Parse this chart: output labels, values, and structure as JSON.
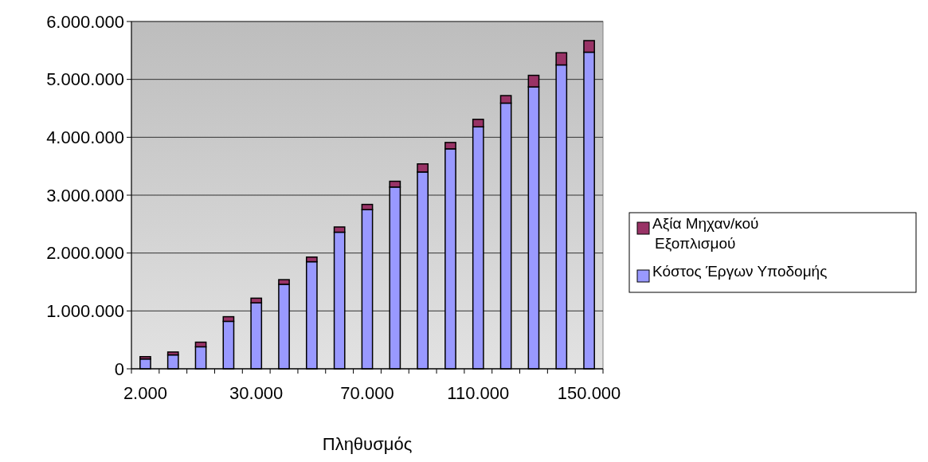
{
  "chart_data": {
    "type": "bar",
    "stacked": true,
    "xlabel": "Πληθυσμός",
    "categories": [
      "2.000",
      null,
      null,
      null,
      "30.000",
      null,
      null,
      null,
      "70.000",
      null,
      null,
      null,
      "110.000",
      null,
      null,
      null,
      "150.000"
    ],
    "series": [
      {
        "name": "Κόστος Έργων Υποδομής",
        "color": "#9999ff",
        "values": [
          170000,
          240000,
          380000,
          820000,
          1140000,
          1460000,
          1850000,
          2360000,
          2750000,
          3140000,
          3400000,
          3800000,
          4180000,
          4590000,
          4870000,
          5250000,
          5470000
        ]
      },
      {
        "name": "Αξία Μηχαν/κού Εξοπλισμού",
        "color": "#993366",
        "values": [
          40000,
          50000,
          80000,
          80000,
          80000,
          80000,
          80000,
          90000,
          90000,
          100000,
          140000,
          110000,
          130000,
          130000,
          200000,
          210000,
          200000
        ]
      }
    ],
    "ylim": [
      0,
      6000000
    ],
    "yticks": [
      {
        "value": 0,
        "label": "0"
      },
      {
        "value": 1000000,
        "label": "1.000.000"
      },
      {
        "value": 2000000,
        "label": "2.000.000"
      },
      {
        "value": 3000000,
        "label": "3.000.000"
      },
      {
        "value": 4000000,
        "label": "4.000.000"
      },
      {
        "value": 5000000,
        "label": "5.000.000"
      },
      {
        "value": 6000000,
        "label": "6.000.000"
      }
    ],
    "grid": "y",
    "legend": "right"
  }
}
